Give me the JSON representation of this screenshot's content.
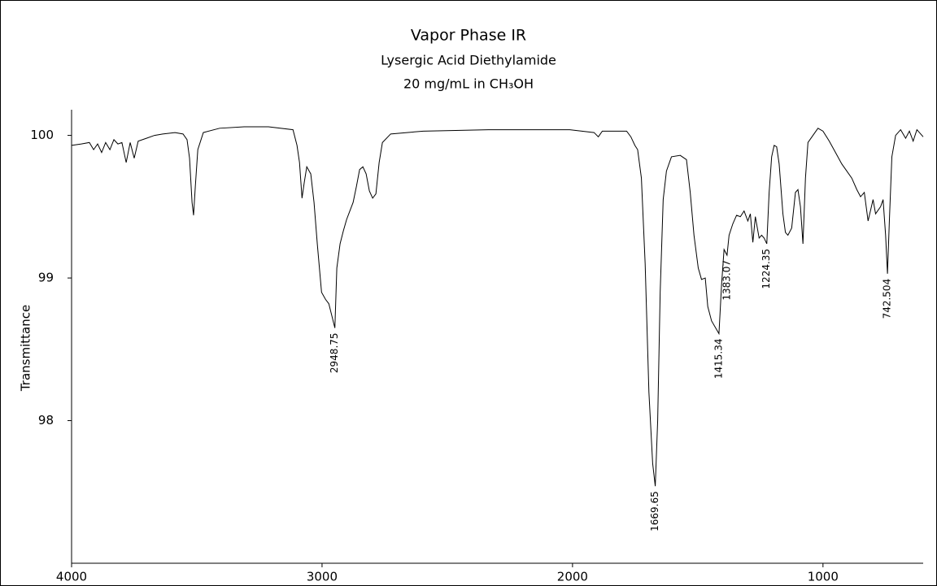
{
  "chart_data": {
    "type": "line",
    "title": "Vapor Phase IR",
    "subtitle": [
      "Lysergic Acid Diethylamide",
      "20 mg/mL in CH₃OH"
    ],
    "y_label": "Transmittance",
    "xlim": [
      4000,
      600
    ],
    "ylim": [
      97,
      100.18
    ],
    "xticks": [
      4000,
      3000,
      2000,
      1000
    ],
    "yticks": [
      98,
      99,
      100
    ],
    "color": "#000000",
    "x": [
      4000,
      3961,
      3929,
      3912,
      3896,
      3880,
      3864,
      3847,
      3831,
      3815,
      3799,
      3782,
      3766,
      3750,
      3734,
      3701,
      3669,
      3636,
      3587,
      3555,
      3539,
      3529,
      3519,
      3513,
      3506,
      3496,
      3474,
      3409,
      3311,
      3214,
      3116,
      3100,
      3090,
      3080,
      3071,
      3061,
      3045,
      3032,
      3019,
      3002,
      2986,
      2973,
      2948.75,
      2941,
      2928,
      2915,
      2902,
      2889,
      2876,
      2863,
      2850,
      2837,
      2824,
      2811,
      2798,
      2785,
      2772,
      2759,
      2726,
      2596,
      2336,
      2011,
      1914,
      1897,
      1881,
      1784,
      1767,
      1751,
      1740,
      1725,
      1710,
      1695,
      1680,
      1669.65,
      1660,
      1650,
      1638,
      1625,
      1605,
      1570,
      1545,
      1530,
      1515,
      1498,
      1485,
      1470,
      1460,
      1445,
      1415.34,
      1405,
      1395,
      1383.07,
      1375,
      1360,
      1345,
      1330,
      1315,
      1300,
      1290,
      1280,
      1270,
      1255,
      1245,
      1235,
      1224.35,
      1215,
      1205,
      1195,
      1185,
      1175,
      1160,
      1150,
      1140,
      1125,
      1110,
      1100,
      1090,
      1080,
      1070,
      1060,
      1040,
      1020,
      1000,
      975,
      950,
      925,
      905,
      885,
      865,
      850,
      835,
      820,
      800,
      790,
      770,
      760,
      750,
      742.504,
      735,
      725,
      710,
      690,
      670,
      655,
      640,
      625,
      605,
      600
    ],
    "values": [
      99.93,
      99.94,
      99.95,
      99.9,
      99.94,
      99.88,
      99.95,
      99.9,
      99.97,
      99.94,
      99.95,
      99.81,
      99.95,
      99.84,
      99.96,
      99.98,
      100,
      100.01,
      100.02,
      100.01,
      99.97,
      99.84,
      99.53,
      99.44,
      99.64,
      99.9,
      100.02,
      100.05,
      100.06,
      100.06,
      100.04,
      99.93,
      99.81,
      99.56,
      99.67,
      99.78,
      99.73,
      99.53,
      99.24,
      98.9,
      98.85,
      98.82,
      98.65,
      99.07,
      99.24,
      99.33,
      99.41,
      99.47,
      99.53,
      99.64,
      99.76,
      99.78,
      99.73,
      99.61,
      99.56,
      99.59,
      99.81,
      99.95,
      100.01,
      100.03,
      100.04,
      100.04,
      100.02,
      99.99,
      100.03,
      100.03,
      99.99,
      99.93,
      99.9,
      99.7,
      99.1,
      98.2,
      97.7,
      97.54,
      98,
      98.9,
      99.55,
      99.75,
      99.85,
      99.86,
      99.83,
      99.6,
      99.3,
      99.07,
      98.99,
      99,
      98.8,
      98.7,
      98.61,
      98.95,
      99.2,
      99.16,
      99.3,
      99.38,
      99.44,
      99.43,
      99.47,
      99.4,
      99.45,
      99.25,
      99.43,
      99.28,
      99.3,
      99.28,
      99.24,
      99.6,
      99.85,
      99.93,
      99.92,
      99.8,
      99.45,
      99.32,
      99.3,
      99.35,
      99.6,
      99.62,
      99.5,
      99.24,
      99.7,
      99.95,
      100,
      100.05,
      100.03,
      99.96,
      99.88,
      99.8,
      99.75,
      99.7,
      99.62,
      99.57,
      99.6,
      99.4,
      99.55,
      99.45,
      99.5,
      99.55,
      99.3,
      99.03,
      99.4,
      99.85,
      100,
      100.04,
      99.98,
      100.03,
      99.96,
      100.04,
      100,
      99.99
    ],
    "peak_labels": [
      2948.75,
      1669.65,
      1415.34,
      1383.07,
      1224.35,
      742.504
    ]
  }
}
